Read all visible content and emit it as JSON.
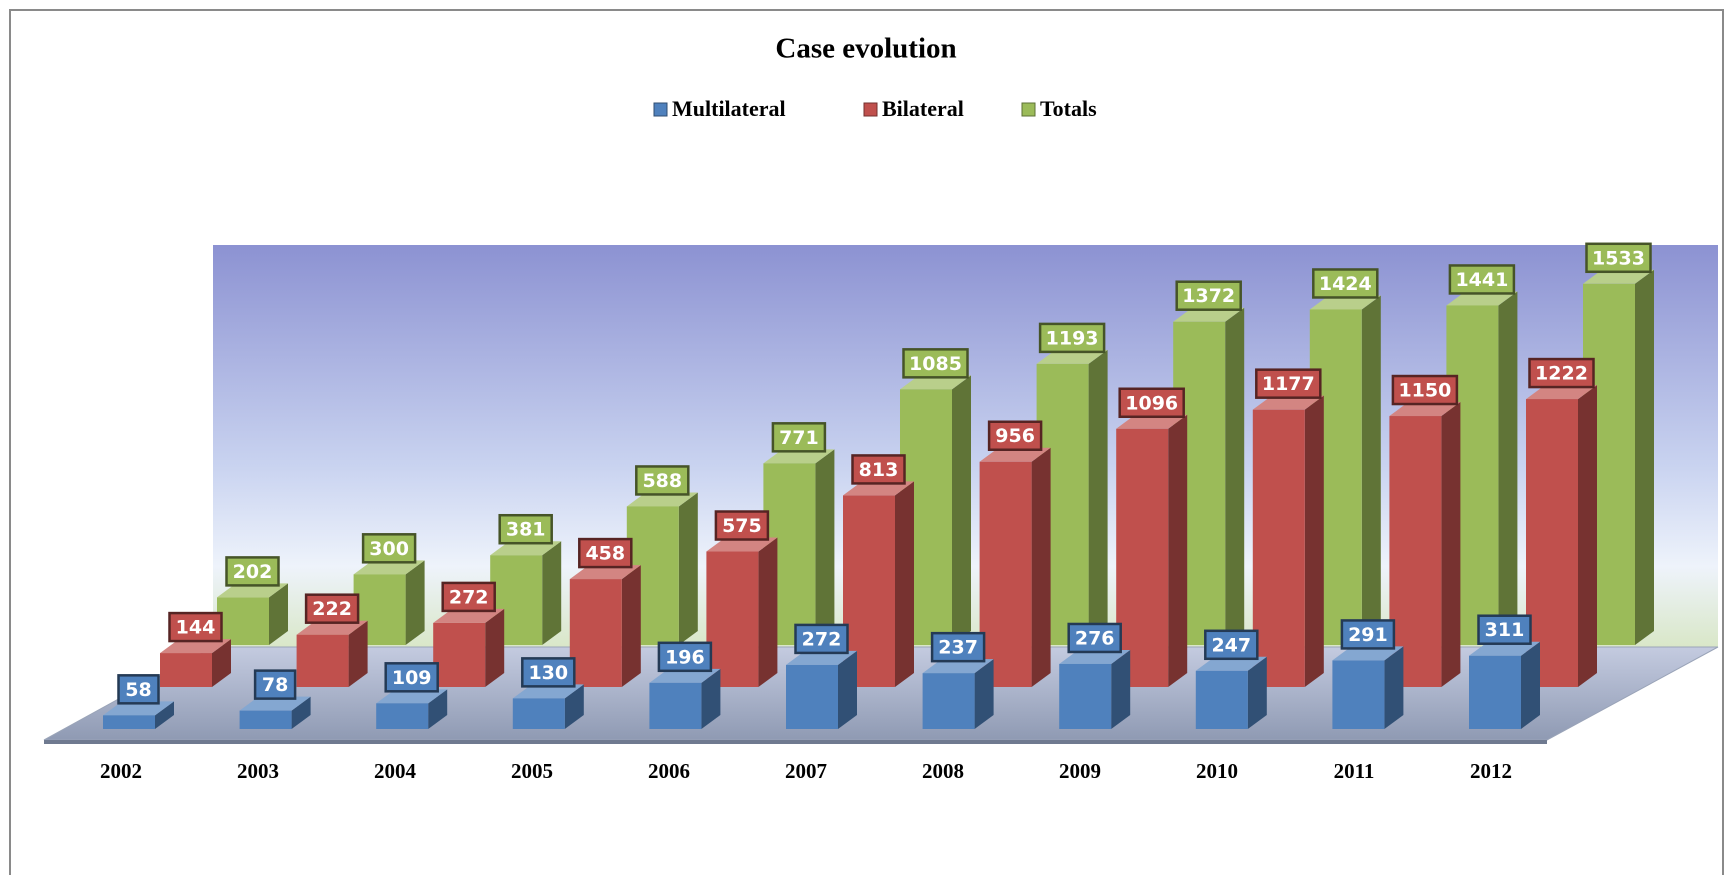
{
  "chart_data": {
    "type": "bar3d",
    "title": "Case evolution",
    "categories": [
      "2002",
      "2003",
      "2004",
      "2005",
      "2006",
      "2007",
      "2008",
      "2009",
      "2010",
      "2011",
      "2012"
    ],
    "series": [
      {
        "name": "Multilateral",
        "color": "#4f81bd",
        "values": [
          58,
          78,
          109,
          130,
          196,
          272,
          237,
          276,
          247,
          291,
          311
        ]
      },
      {
        "name": "Bilateral",
        "color": "#c0504d",
        "values": [
          144,
          222,
          272,
          458,
          575,
          813,
          956,
          1096,
          1177,
          1150,
          1222
        ]
      },
      {
        "name": "Totals",
        "color": "#9bbb59",
        "values": [
          202,
          300,
          381,
          588,
          771,
          1085,
          1193,
          1372,
          1424,
          1441,
          1533
        ]
      }
    ],
    "ylim": [
      0,
      1600
    ],
    "legend": "top"
  }
}
